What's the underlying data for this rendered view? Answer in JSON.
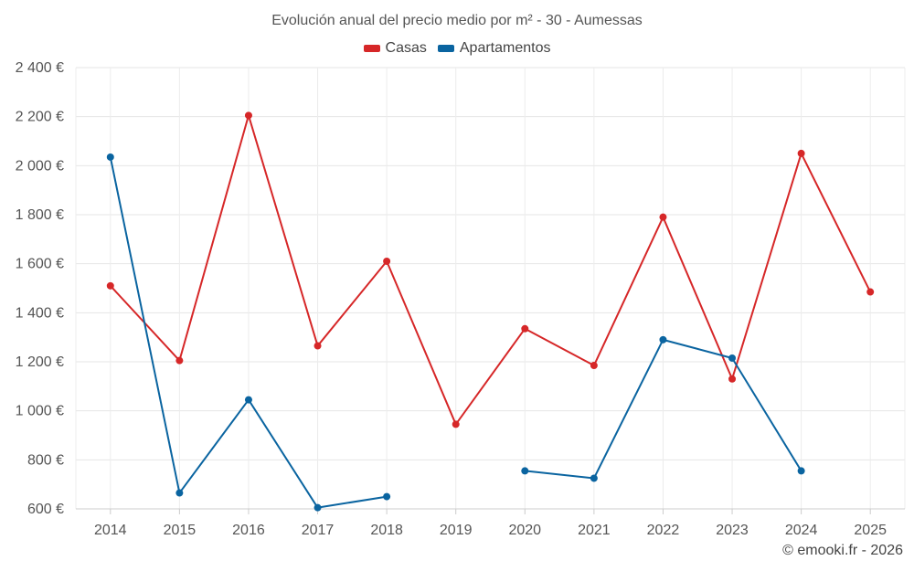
{
  "chart_data": {
    "type": "line",
    "title": "Evolución anual del precio medio por m² - 30 - Aumessas",
    "categories": [
      "2014",
      "2015",
      "2016",
      "2017",
      "2018",
      "2019",
      "2020",
      "2021",
      "2022",
      "2023",
      "2024",
      "2025"
    ],
    "ylim": [
      600,
      2400
    ],
    "yticks": [
      600,
      800,
      1000,
      1200,
      1400,
      1600,
      1800,
      2000,
      2200,
      2400
    ],
    "ytick_labels": [
      "600 €",
      "800 €",
      "1 000 €",
      "1 200 €",
      "1 400 €",
      "1 600 €",
      "1 800 €",
      "2 000 €",
      "2 200 €",
      "2 400 €"
    ],
    "grid": true,
    "legend_position": "top-center",
    "series": [
      {
        "name": "Casas",
        "color": "#d62728",
        "values": [
          1510,
          1205,
          2205,
          1265,
          1610,
          945,
          1335,
          1185,
          1790,
          1130,
          2050,
          1485
        ]
      },
      {
        "name": "Apartamentos",
        "color": "#0a64a0",
        "values": [
          2035,
          665,
          1045,
          605,
          650,
          null,
          755,
          725,
          1290,
          1215,
          755,
          null
        ]
      }
    ]
  },
  "credit": "© emooki.fr - 2026"
}
